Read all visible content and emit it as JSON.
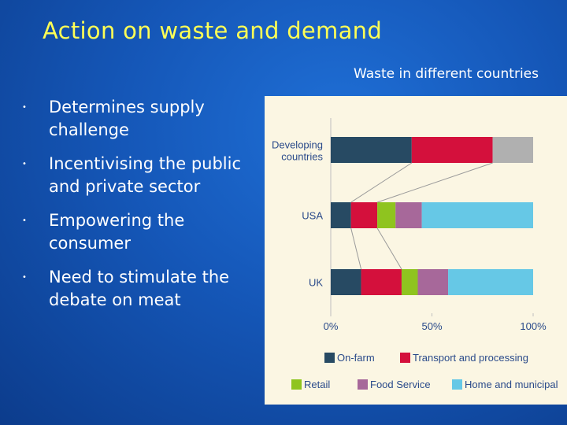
{
  "slide": {
    "title": "Action on waste and demand",
    "chart_caption": "Waste in different countries",
    "bullets": [
      "Determines supply challenge",
      "Incentivising the public and private sector",
      "Empowering the consumer",
      "Need to stimulate the debate on meat"
    ]
  },
  "chart_data": {
    "type": "bar",
    "orientation": "horizontal",
    "stacked": true,
    "title": "Waste in different countries",
    "categories": [
      "Developing countries",
      "USA",
      "UK"
    ],
    "xlim": [
      0,
      100
    ],
    "x_ticks": [
      "0%",
      "50%",
      "100%"
    ],
    "series": [
      {
        "name": "On-farm",
        "color": "#274a63",
        "values": [
          40,
          10,
          15
        ]
      },
      {
        "name": "Transport and processing",
        "color": "#d4103c",
        "values": [
          40,
          13,
          20
        ]
      },
      {
        "name": "Retail",
        "color": "#8fc41f",
        "values": [
          0,
          9,
          8
        ]
      },
      {
        "name": "Food Service",
        "color": "#a7689a",
        "values": [
          0,
          13,
          15
        ]
      },
      {
        "name": "Home and municipal",
        "color": "#66c8e6",
        "values": [
          0,
          55,
          42
        ]
      }
    ],
    "remainder_color": "#b0b0b0",
    "legend_position": "bottom",
    "grid": false
  }
}
